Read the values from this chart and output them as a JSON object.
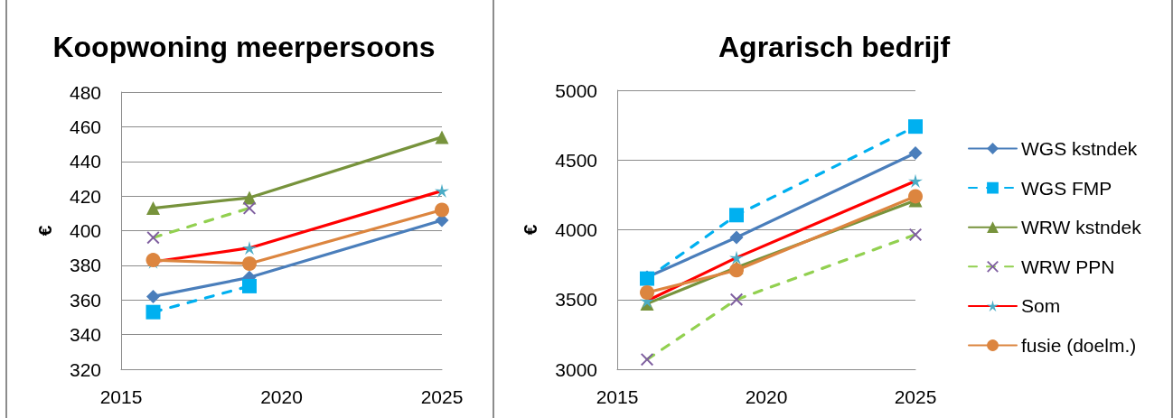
{
  "chart_data": [
    {
      "type": "line",
      "title": "Koopwoning meerpersoons",
      "ylabel": "€",
      "x": [
        2016,
        2019,
        2025
      ],
      "xlim": [
        2015,
        2025
      ],
      "xticks": [
        2015,
        2020,
        2025
      ],
      "ylim": [
        320,
        480
      ],
      "yticks": [
        320,
        340,
        360,
        380,
        400,
        420,
        440,
        460,
        480
      ],
      "grid": "y",
      "series": [
        {
          "color": "#4a7ebb",
          "marker": "diamond",
          "line_style": "solid",
          "values": [
            362,
            373,
            406
          ]
        },
        {
          "color": "#00b0f0",
          "marker": "square",
          "line_style": "dashed",
          "values": [
            353,
            368,
            null
          ]
        },
        {
          "color": "#77933c",
          "marker": "triangle",
          "line_style": "solid",
          "values": [
            413,
            419,
            454
          ]
        },
        {
          "color": "#92d050",
          "colors": [
            "#7f5fa0",
            "#7f5fa0",
            "#7f5fa0"
          ],
          "marker": "cross",
          "line_style": "dashed",
          "values": [
            396,
            413,
            null
          ]
        },
        {
          "color": "#ff0000",
          "colors": [
            "#4bacc6",
            "#4bacc6",
            "#4bacc6"
          ],
          "marker": "star",
          "line_style": "solid",
          "values": [
            382,
            390,
            423
          ]
        },
        {
          "color": "#dc853f",
          "marker": "circle",
          "line_style": "solid",
          "values": [
            383,
            381,
            412
          ]
        }
      ]
    },
    {
      "type": "line",
      "title": "Agrarisch bedrijf",
      "ylabel": "€",
      "x": [
        2016,
        2019,
        2025
      ],
      "xlim": [
        2015,
        2025
      ],
      "xticks": [
        2015,
        2020,
        2025
      ],
      "ylim": [
        3000,
        5000
      ],
      "yticks": [
        3000,
        3500,
        4000,
        4500,
        5000
      ],
      "grid": "y",
      "legend": "right",
      "series": [
        {
          "name": "WGS kstndek",
          "color": "#4a7ebb",
          "marker": "diamond",
          "line_style": "solid",
          "values": [
            3660,
            3945,
            4550
          ]
        },
        {
          "name": "WGS FMP",
          "color": "#00b0f0",
          "marker": "square",
          "line_style": "dashed",
          "values": [
            3650,
            4105,
            4740
          ]
        },
        {
          "name": "WRW kstndek",
          "color": "#77933c",
          "marker": "triangle",
          "line_style": "solid",
          "values": [
            3470,
            3730,
            4210
          ]
        },
        {
          "name": "WRW PPN",
          "color": "#92d050",
          "colors": [
            "#7f5fa0",
            "#7f5fa0",
            "#7f5fa0"
          ],
          "marker": "cross",
          "line_style": "dashed",
          "values": [
            3070,
            3500,
            3965
          ]
        },
        {
          "name": "Som",
          "color": "#ff0000",
          "colors": [
            "#4bacc6",
            "#4bacc6",
            "#4bacc6"
          ],
          "marker": "star",
          "line_style": "solid",
          "values": [
            3490,
            3800,
            4350
          ]
        },
        {
          "name": "fusie (doelm.)",
          "color": "#dc853f",
          "marker": "circle",
          "line_style": "solid",
          "values": [
            3550,
            3710,
            4240
          ]
        }
      ]
    }
  ]
}
